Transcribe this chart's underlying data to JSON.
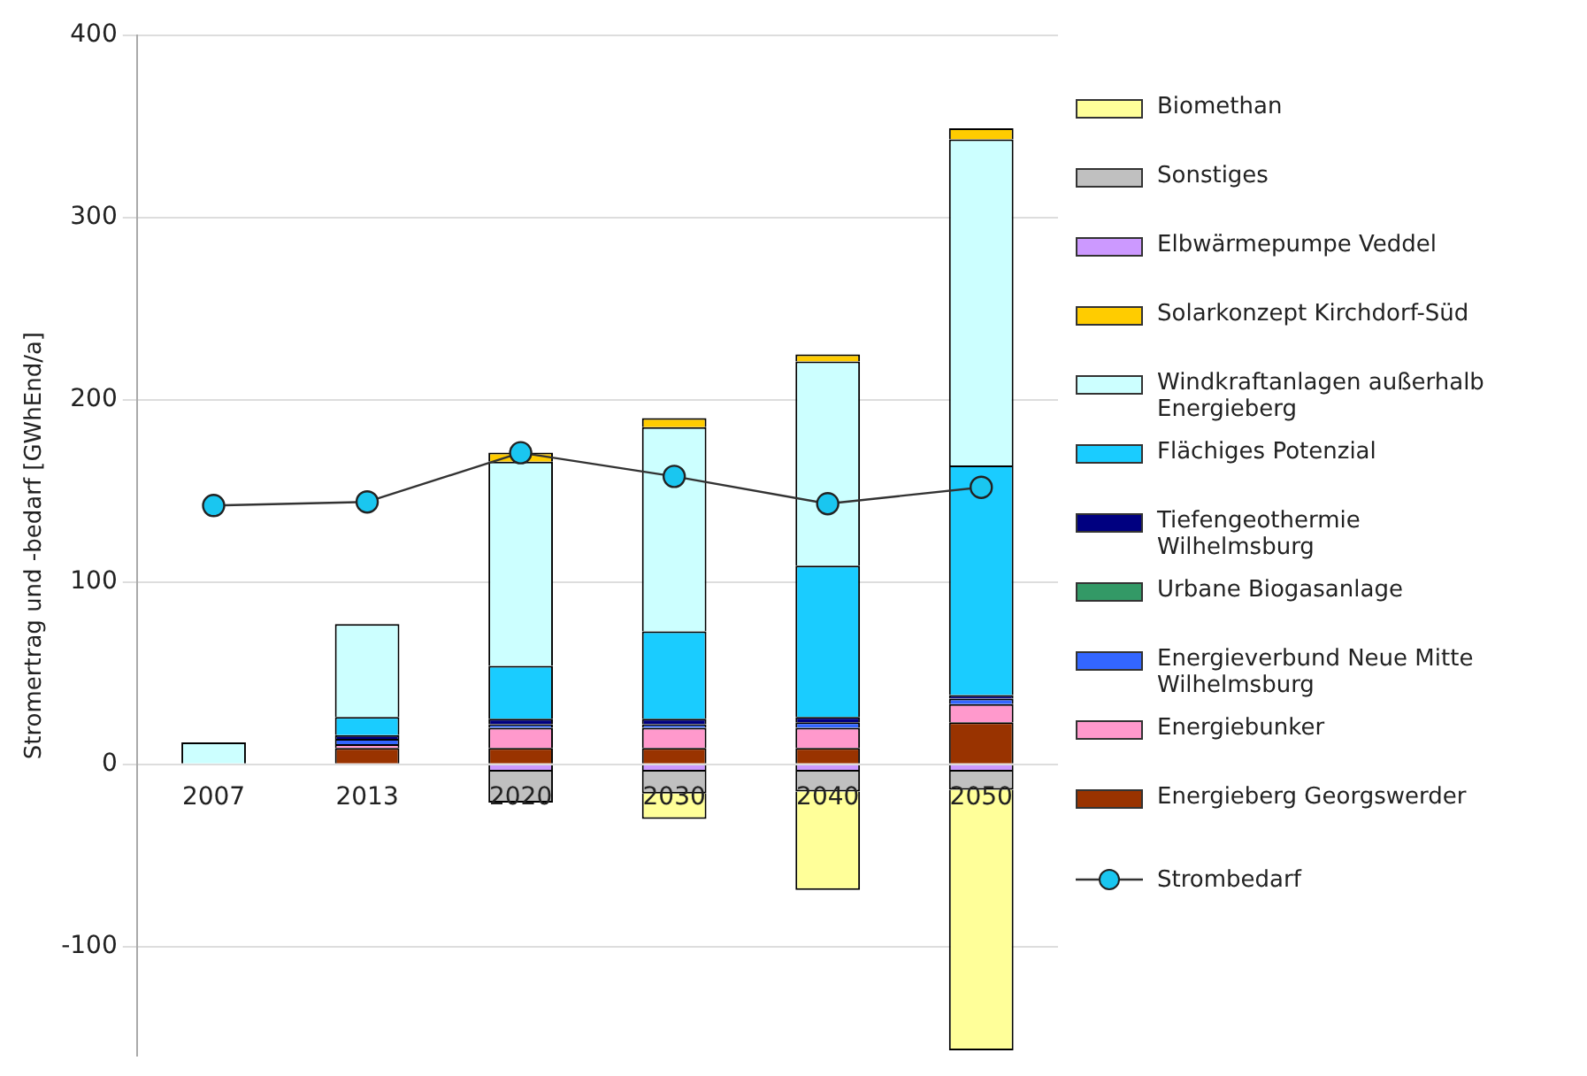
{
  "chart_data": {
    "type": "bar",
    "stacked": true,
    "ylabel": "Stromertrag und -bedarf [GWhEnd/a]",
    "categories": [
      "2007",
      "2013",
      "2020",
      "2030",
      "2040",
      "2050"
    ],
    "series": [
      {
        "name": "Energieberg Georgswerder",
        "color": "#993300",
        "values": [
          0,
          9,
          9,
          9,
          9,
          23
        ]
      },
      {
        "name": "Energiebunker",
        "color": "#ff99cc",
        "values": [
          0,
          2,
          11,
          11,
          11,
          10
        ]
      },
      {
        "name": "Energieverbund Neue Mitte Wilhelmsburg",
        "color": "#3366ff",
        "values": [
          0,
          3,
          2,
          2,
          3,
          3
        ]
      },
      {
        "name": "Urbane Biogasanlage",
        "color": "#339966",
        "values": [
          0,
          0,
          0,
          0,
          0,
          0
        ]
      },
      {
        "name": "Tiefengeothermie Wilhelmsburg",
        "color": "#000080",
        "values": [
          null,
          2,
          3,
          3,
          3,
          2
        ]
      },
      {
        "name": "Flächiges Potenzial",
        "color": "#1accff",
        "values": [
          0,
          10,
          29,
          48,
          83,
          126
        ]
      },
      {
        "name": "Windkraftanlagen außerhalb Energieberg",
        "color": "#ccffff",
        "values": [
          12,
          51,
          112,
          112,
          112,
          179
        ]
      },
      {
        "name": "Solarkonzept Kirchdorf-Süd",
        "color": "#ffcc00",
        "values": [
          0,
          0,
          5,
          5,
          4,
          6
        ]
      },
      {
        "name": "Elbwärmepumpe Veddel",
        "color": "#cc99ff",
        "values": [
          0,
          0,
          -4,
          -4,
          -4,
          -4
        ]
      },
      {
        "name": "Sonstiges",
        "color": "#c0c0c0",
        "values": [
          0,
          0,
          -17,
          -12,
          -11,
          -10
        ]
      },
      {
        "name": "Biomethan",
        "color": "#ffff99",
        "values": [
          0,
          0,
          0,
          -14,
          -54,
          -143
        ]
      },
      {
        "name": "Strombedarf",
        "type": "line",
        "color": "#1ac6f0",
        "marker": "circle",
        "values": [
          142,
          144,
          171,
          158,
          143,
          152
        ]
      }
    ],
    "ylim": [
      -160,
      400
    ],
    "yticks": [
      -100,
      0,
      100,
      200,
      300,
      400
    ],
    "grid": "y",
    "legend": "right"
  }
}
